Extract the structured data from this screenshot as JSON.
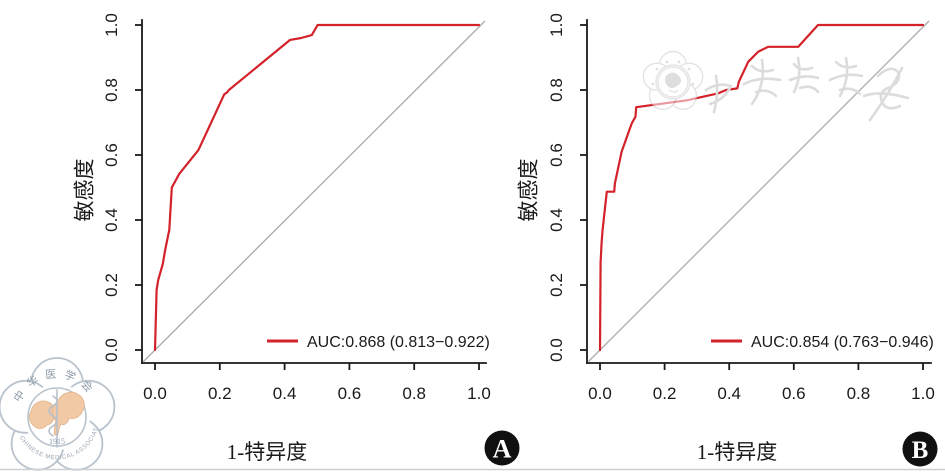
{
  "panels": [
    {
      "badge": "A",
      "x_axis_label": "1-特异度",
      "y_axis_label": "敏感度",
      "x_tick_labels": [
        "0.0",
        "0.2",
        "0.4",
        "0.6",
        "0.8",
        "1.0"
      ],
      "y_tick_labels": [
        "0.0",
        "0.2",
        "0.4",
        "0.6",
        "0.8",
        "1.0"
      ],
      "legend_label": "AUC:0.868 (0.813−0.922)"
    },
    {
      "badge": "B",
      "x_axis_label": "1-特异度",
      "y_axis_label": "敏感度",
      "x_tick_labels": [
        "0.0",
        "0.2",
        "0.4",
        "0.6",
        "0.8",
        "1.0"
      ],
      "y_tick_labels": [
        "0.0",
        "0.2",
        "0.4",
        "0.6",
        "0.8",
        "1.0"
      ],
      "legend_label": "AUC:0.854 (0.763−0.946)"
    }
  ],
  "chart_data": [
    {
      "type": "line",
      "title": "ROC curve, panel A",
      "xlabel": "1-特异度",
      "ylabel": "敏感度",
      "xlim": [
        0,
        1
      ],
      "ylim": [
        0,
        1
      ],
      "x_ticks": [
        0.0,
        0.2,
        0.4,
        0.6,
        0.8,
        1.0
      ],
      "y_ticks": [
        0.0,
        0.2,
        0.4,
        0.6,
        0.8,
        1.0
      ],
      "grid": false,
      "legend_position": "bottom-right",
      "reference_line": "y = x diagonal",
      "auc": 0.868,
      "auc_ci": [
        0.813,
        0.922
      ],
      "series": [
        {
          "name": "AUC:0.868 (0.813−0.922)",
          "color": "#d3222a",
          "points": [
            [
              0,
              0
            ],
            [
              0.005,
              0.185
            ],
            [
              0.01,
              0.215
            ],
            [
              0.024,
              0.265
            ],
            [
              0.031,
              0.305
            ],
            [
              0.038,
              0.34
            ],
            [
              0.044,
              0.37
            ],
            [
              0.052,
              0.5
            ],
            [
              0.075,
              0.542
            ],
            [
              0.134,
              0.615
            ],
            [
              0.214,
              0.787
            ],
            [
              0.222,
              0.792
            ],
            [
              0.228,
              0.8
            ],
            [
              0.417,
              0.954
            ],
            [
              0.451,
              0.96
            ],
            [
              0.484,
              0.969
            ],
            [
              0.502,
              1.0
            ],
            [
              1.0,
              1.0
            ]
          ]
        }
      ]
    },
    {
      "type": "line",
      "title": "ROC curve, panel B",
      "xlabel": "1-特异度",
      "ylabel": "敏感度",
      "xlim": [
        0,
        1
      ],
      "ylim": [
        0,
        1
      ],
      "x_ticks": [
        0.0,
        0.2,
        0.4,
        0.6,
        0.8,
        1.0
      ],
      "y_ticks": [
        0.0,
        0.2,
        0.4,
        0.6,
        0.8,
        1.0
      ],
      "grid": false,
      "legend_position": "bottom-right",
      "reference_line": "y = x diagonal",
      "auc": 0.854,
      "auc_ci": [
        0.763,
        0.946
      ],
      "series": [
        {
          "name": "AUC:0.854 (0.763−0.946)",
          "color": "#d3222a",
          "points": [
            [
              0,
              0
            ],
            [
              0.002,
              0.27
            ],
            [
              0.005,
              0.33
            ],
            [
              0.008,
              0.37
            ],
            [
              0.021,
              0.487
            ],
            [
              0.044,
              0.487
            ],
            [
              0.046,
              0.513
            ],
            [
              0.067,
              0.61
            ],
            [
              0.098,
              0.697
            ],
            [
              0.11,
              0.718
            ],
            [
              0.112,
              0.747
            ],
            [
              0.273,
              0.769
            ],
            [
              0.366,
              0.79
            ],
            [
              0.39,
              0.8
            ],
            [
              0.425,
              0.805
            ],
            [
              0.43,
              0.826
            ],
            [
              0.459,
              0.887
            ],
            [
              0.49,
              0.918
            ],
            [
              0.521,
              0.933
            ],
            [
              0.614,
              0.933
            ],
            [
              0.675,
              1.0
            ],
            [
              1.0,
              1.0
            ]
          ]
        }
      ]
    }
  ],
  "watermarks": {
    "logo": {
      "top_text": "中华医学会",
      "bottom_text": "CHINESE MEDICAL ASSOCIATION",
      "year": "1915"
    },
    "script_text": "中华医学会"
  },
  "colors": {
    "curve": "#d3222a",
    "diagonal": "#ababab",
    "axis": "#1a1a1a",
    "badge_bg": "#101010",
    "badge_letter": "#ffffff",
    "watermark_gray": "#dcdcdc",
    "logo_outline": "#b9c3cd",
    "logo_map_fill": "#f1c9a5"
  }
}
